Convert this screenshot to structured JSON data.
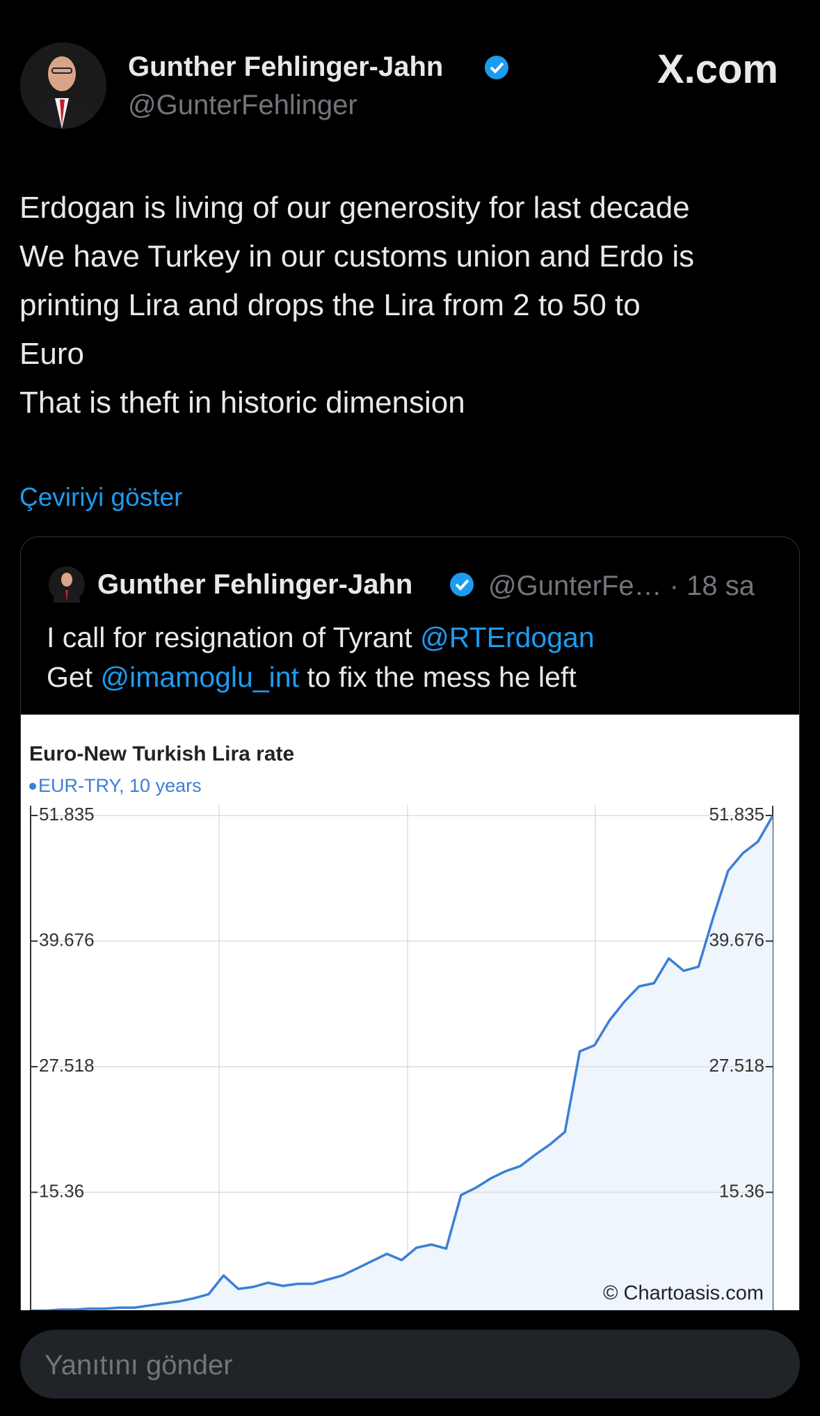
{
  "header": {
    "name": "Gunther Fehlinger-Jahn",
    "handle": "@GunterFehlinger",
    "site": "X.com"
  },
  "tweet": {
    "lines": [
      "Erdogan is living of our generosity for last decade",
      "We have Turkey in our customs union and Erdo is",
      "printing Lira and drops the Lira from 2 to 50 to",
      "Euro",
      "That is theft in historic dimension"
    ],
    "translate": "Çeviriyi göster"
  },
  "quoted_tweet": {
    "name": "Gunther Fehlinger-Jahn",
    "meta": "@GunterFe… · 18 sa",
    "lines": [
      [
        "I call for resignation of Tyrant ",
        "@RTErdogan"
      ],
      [
        "Get ",
        "@imamoglu_int",
        " to fix the mess he left"
      ]
    ],
    "chart": {
      "type": "line",
      "title": "Euro-New Turkish Lira rate",
      "series": [
        {
          "name": "EUR-TRY, 10 years",
          "color": "#3b7fd4",
          "values": [
            3.9,
            3.9,
            4.0,
            4.0,
            4.1,
            4.1,
            4.2,
            4.2,
            4.4,
            4.6,
            4.8,
            5.1,
            5.5,
            7.3,
            6.0,
            6.2,
            6.6,
            6.3,
            6.5,
            6.5,
            6.9,
            7.3,
            8.0,
            8.7,
            9.4,
            8.8,
            10.0,
            10.3,
            9.9,
            15.1,
            15.8,
            16.7,
            17.4,
            17.9,
            19.0,
            20.0,
            21.2,
            29.0,
            29.6,
            32.0,
            33.8,
            35.3,
            35.6,
            38.0,
            36.8,
            37.2,
            42.0,
            46.5,
            48.2,
            49.3,
            51.8
          ]
        }
      ],
      "ylim": [
        3.201,
        51.835
      ],
      "yticks": [
        15.36,
        27.518,
        39.676,
        51.835
      ],
      "grid": true,
      "watermark": "© Chartoasis.com"
    }
  },
  "reply": {
    "placeholder": "Yanıtını gönder"
  }
}
